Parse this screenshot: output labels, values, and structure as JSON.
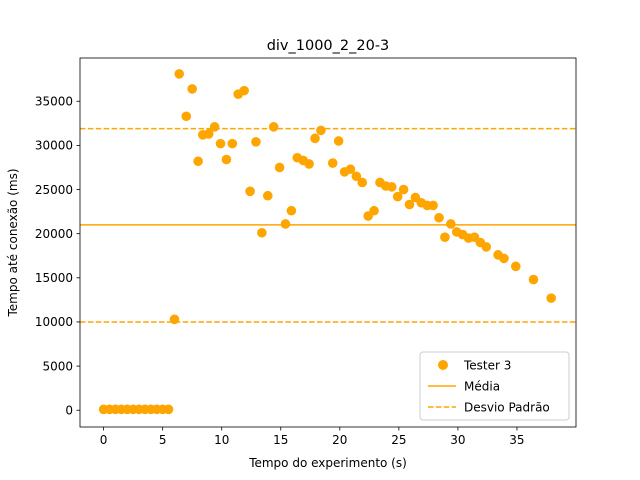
{
  "chart_data": {
    "type": "scatter",
    "title": "div_1000_2_20-3",
    "xlabel": "Tempo do experimento (s)",
    "ylabel": "Tempo até conexão (ms)",
    "xlim": [
      -2,
      40
    ],
    "ylim": [
      -1900,
      39900
    ],
    "xticks": [
      0,
      5,
      10,
      15,
      20,
      25,
      30,
      35
    ],
    "yticks": [
      0,
      5000,
      10000,
      15000,
      20000,
      25000,
      30000,
      35000
    ],
    "grid": false,
    "legend_position": "lower right",
    "colors": {
      "series": "#ffa500"
    },
    "series": [
      {
        "name": "Tester 3",
        "points": [
          [
            0.0,
            100
          ],
          [
            0.5,
            100
          ],
          [
            1.0,
            100
          ],
          [
            1.5,
            100
          ],
          [
            2.0,
            100
          ],
          [
            2.5,
            100
          ],
          [
            3.0,
            100
          ],
          [
            3.5,
            100
          ],
          [
            4.0,
            100
          ],
          [
            4.5,
            100
          ],
          [
            5.0,
            100
          ],
          [
            5.5,
            100
          ],
          [
            6.0,
            10300
          ],
          [
            6.4,
            38100
          ],
          [
            7.0,
            33300
          ],
          [
            7.5,
            36400
          ],
          [
            8.0,
            28200
          ],
          [
            8.4,
            31200
          ],
          [
            8.9,
            31300
          ],
          [
            9.4,
            32100
          ],
          [
            9.9,
            30200
          ],
          [
            10.4,
            28400
          ],
          [
            10.9,
            30200
          ],
          [
            11.4,
            35800
          ],
          [
            11.9,
            36200
          ],
          [
            12.4,
            24800
          ],
          [
            12.9,
            30400
          ],
          [
            13.4,
            20100
          ],
          [
            13.9,
            24300
          ],
          [
            14.4,
            32100
          ],
          [
            14.9,
            27500
          ],
          [
            15.4,
            21100
          ],
          [
            15.9,
            22600
          ],
          [
            16.4,
            28600
          ],
          [
            16.9,
            28300
          ],
          [
            17.4,
            27900
          ],
          [
            17.9,
            30800
          ],
          [
            18.4,
            31700
          ],
          [
            19.4,
            28000
          ],
          [
            19.9,
            30500
          ],
          [
            20.4,
            27000
          ],
          [
            20.9,
            27300
          ],
          [
            21.4,
            26500
          ],
          [
            21.9,
            25800
          ],
          [
            22.4,
            22000
          ],
          [
            22.9,
            22600
          ],
          [
            23.4,
            25800
          ],
          [
            23.9,
            25400
          ],
          [
            24.4,
            25300
          ],
          [
            24.9,
            24200
          ],
          [
            25.4,
            25000
          ],
          [
            25.9,
            23300
          ],
          [
            26.4,
            24100
          ],
          [
            26.9,
            23500
          ],
          [
            27.4,
            23200
          ],
          [
            27.9,
            23200
          ],
          [
            28.4,
            21800
          ],
          [
            28.9,
            19600
          ],
          [
            29.4,
            21100
          ],
          [
            29.9,
            20200
          ],
          [
            30.4,
            19900
          ],
          [
            30.9,
            19500
          ],
          [
            31.4,
            19600
          ],
          [
            31.9,
            19000
          ],
          [
            32.4,
            18500
          ],
          [
            33.4,
            17600
          ],
          [
            33.9,
            17200
          ],
          [
            34.9,
            16300
          ],
          [
            36.4,
            14800
          ],
          [
            37.9,
            12700
          ]
        ]
      }
    ],
    "reference_lines": [
      {
        "name": "Média",
        "y": 21000,
        "style": "solid"
      },
      {
        "name": "Desvio Padrão",
        "y": 31900,
        "style": "dashed"
      },
      {
        "name": "",
        "y": 10000,
        "style": "dashed"
      }
    ]
  }
}
